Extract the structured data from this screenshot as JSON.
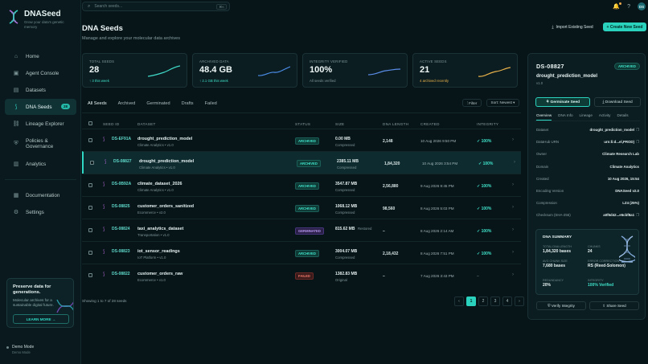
{
  "app": {
    "name": "DNASeed",
    "tagline": "Grow your data's genetic memory"
  },
  "search": {
    "placeholder": "Search seeds...",
    "shortcut": "⌘K"
  },
  "topbar": {
    "avatar": "DS"
  },
  "sidebar": {
    "items": [
      {
        "label": "Home",
        "icon": "home-icon"
      },
      {
        "label": "Agent Console",
        "icon": "bot-icon"
      },
      {
        "label": "Datasets",
        "icon": "database-icon"
      },
      {
        "label": "DNA Seeds",
        "icon": "dna-icon",
        "badge": "28"
      },
      {
        "label": "Lineage Explorer",
        "icon": "link-icon"
      },
      {
        "label": "Policies & Governance",
        "icon": "shield-icon"
      },
      {
        "label": "Analytics",
        "icon": "chart-icon"
      },
      {
        "label": "Documentation",
        "icon": "book-icon"
      },
      {
        "label": "Settings",
        "icon": "gear-icon"
      }
    ],
    "promo": {
      "title": "Preserve data for generations.",
      "text": "Molecular archives for a sustainable digital future.",
      "button": "LEARN MORE →"
    },
    "demo": {
      "title": "Demo Mode",
      "sub": "Demo Mode"
    }
  },
  "header": {
    "title": "DNA Seeds",
    "subtitle": "Manage and explore your molecular data archives",
    "import_label": "Import Existing Seed",
    "create_label": "+ Create New Seed"
  },
  "stats": [
    {
      "label": "TOTAL SEEDS",
      "value": "28",
      "sub": "↑ 3 this week",
      "sub_color": "#3fe0c8",
      "spark": "#3fd9c7"
    },
    {
      "label": "ARCHIVED DATA",
      "value": "48.4 GB",
      "sub": "↑ 2.1 GB this week",
      "sub_color": "#3fe0c8",
      "spark": "#4a8de8"
    },
    {
      "label": "INTEGRITY VERIFIED",
      "value": "100%",
      "sub": "All seeds verified",
      "sub_color": "#7f9799",
      "spark": "#5a8de8"
    },
    {
      "label": "ACTIVE SEEDS",
      "value": "21",
      "sub": "4 archived recently",
      "sub_color": "#e8b14a",
      "spark": "#e8b14a"
    }
  ],
  "tabs": [
    "All Seeds",
    "Archived",
    "Germinated",
    "Drafts",
    "Failed"
  ],
  "filter_label": "⫶ Filter",
  "sort_label": "Sort: Newest ▾",
  "table": {
    "headers": [
      "SEED ID",
      "DATASET",
      "STATUS",
      "SIZE",
      "DNA LENGTH",
      "CREATED",
      "INTEGRITY"
    ],
    "rows": [
      {
        "id": "DS-EF91A",
        "name": "drought_prediction_model",
        "sub": "Climate Analytics • v1.0",
        "status": "ARCHIVED",
        "status_cls": "st-archived",
        "size": "0.00 MB",
        "size_sub": "Compressed",
        "dna": "2,148",
        "created": "10 Aug 2026 9:50 PM",
        "integrity": "✓ 100%"
      },
      {
        "id": "DS-08827",
        "name": "drought_prediction_model",
        "sub": "Climate Analytics • v1.0",
        "status": "ARCHIVED",
        "status_cls": "st-archived",
        "size": "2385.11 MB",
        "size_sub": "Compressed",
        "dna": "1,84,320",
        "created": "10 Aug 2026 3:54 PM",
        "integrity": "✓ 100%"
      },
      {
        "id": "DS-0B92A",
        "name": "climate_dataset_2026",
        "sub": "Climate Analytics • v1.0",
        "status": "ARCHIVED",
        "status_cls": "st-archived",
        "size": "3547.87 MB",
        "size_sub": "Compressed",
        "dna": "2,56,880",
        "created": "9 Aug 2026 9:45 PM",
        "integrity": "✓ 100%"
      },
      {
        "id": "DS-08825",
        "name": "customer_orders_sanitized",
        "sub": "Ecommerce • v2.0",
        "status": "ARCHIVED",
        "status_cls": "st-archived",
        "size": "1068.12 MB",
        "size_sub": "Compressed",
        "dna": "98,560",
        "created": "8 Aug 2026 5:03 PM",
        "integrity": "✓ 100%"
      },
      {
        "id": "DS-08824",
        "name": "taxi_analytics_dataset",
        "sub": "Transportation • v1.0",
        "status": "GERMINATED",
        "status_cls": "st-germinated",
        "size": "815.62 MB",
        "size_sub": "Restored",
        "dna": "–",
        "created": "8 Aug 2026 2:14 AM",
        "integrity": "✓ 100%"
      },
      {
        "id": "DS-08823",
        "name": "iot_sensor_readings",
        "sub": "IoT Platform • v1.0",
        "status": "ARCHIVED",
        "status_cls": "st-archived",
        "size": "3004.07 MB",
        "size_sub": "Compressed",
        "dna": "2,18,432",
        "created": "8 Aug 2026 7:51 PM",
        "integrity": "✓ 100%"
      },
      {
        "id": "DS-08822",
        "name": "customer_orders_raw",
        "sub": "Ecommerce • v1.0",
        "status": "FAILED",
        "status_cls": "st-failed",
        "size": "1382.83 MB",
        "size_sub": "Original",
        "dna": "–",
        "created": "7 Aug 2026 3:43 PM",
        "integrity": "–"
      }
    ],
    "footer": "Showing 1 to 7 of 28 seeds",
    "pages": [
      "‹",
      "1",
      "2",
      "3",
      "4",
      "›"
    ]
  },
  "detail": {
    "id": "DS-08827",
    "badge": "ARCHIVED",
    "name": "drought_prediction_model",
    "version": "v1.0",
    "germinate": "⚘ Germinate Seed",
    "download": "⤓ Download Seed",
    "tabs": [
      "Overview",
      "DNA Info",
      "Lineage",
      "Activity",
      "Details"
    ],
    "fields": [
      {
        "k": "Dataset",
        "v": "drought_prediction_model"
      },
      {
        "k": "DataHub URN",
        "v": "urn:li:d...el,PROD)"
      },
      {
        "k": "Owner",
        "v": "Climate Research Lab"
      },
      {
        "k": "Domain",
        "v": "Climate Analytics"
      },
      {
        "k": "Created",
        "v": "10 Aug 2026, 15:54"
      },
      {
        "k": "Encoding Version",
        "v": "DNASeed v2.0"
      },
      {
        "k": "Compression",
        "v": "LZ4 (25%)"
      },
      {
        "k": "Checksum (SHA-256)",
        "v": "a0f5d42...e5cbf8a1"
      }
    ],
    "summary": {
      "title": "DNA SUMMARY",
      "items": [
        {
          "k": "TOTAL DNA LENGTH",
          "v": "1,84,320 bases"
        },
        {
          "k": "CHUNKS",
          "v": "24"
        },
        {
          "k": "AVG CHUNK SIZE",
          "v": "7,680 bases"
        },
        {
          "k": "ERROR CORRECTION",
          "v": "RS (Reed-Solomon)"
        },
        {
          "k": "REDUNDANCY",
          "v": "20%"
        },
        {
          "k": "INTEGRITY",
          "v": "100% Verified"
        }
      ]
    },
    "verify": "⛨ Verify Integrity",
    "share": "⇪ Share Seed"
  }
}
